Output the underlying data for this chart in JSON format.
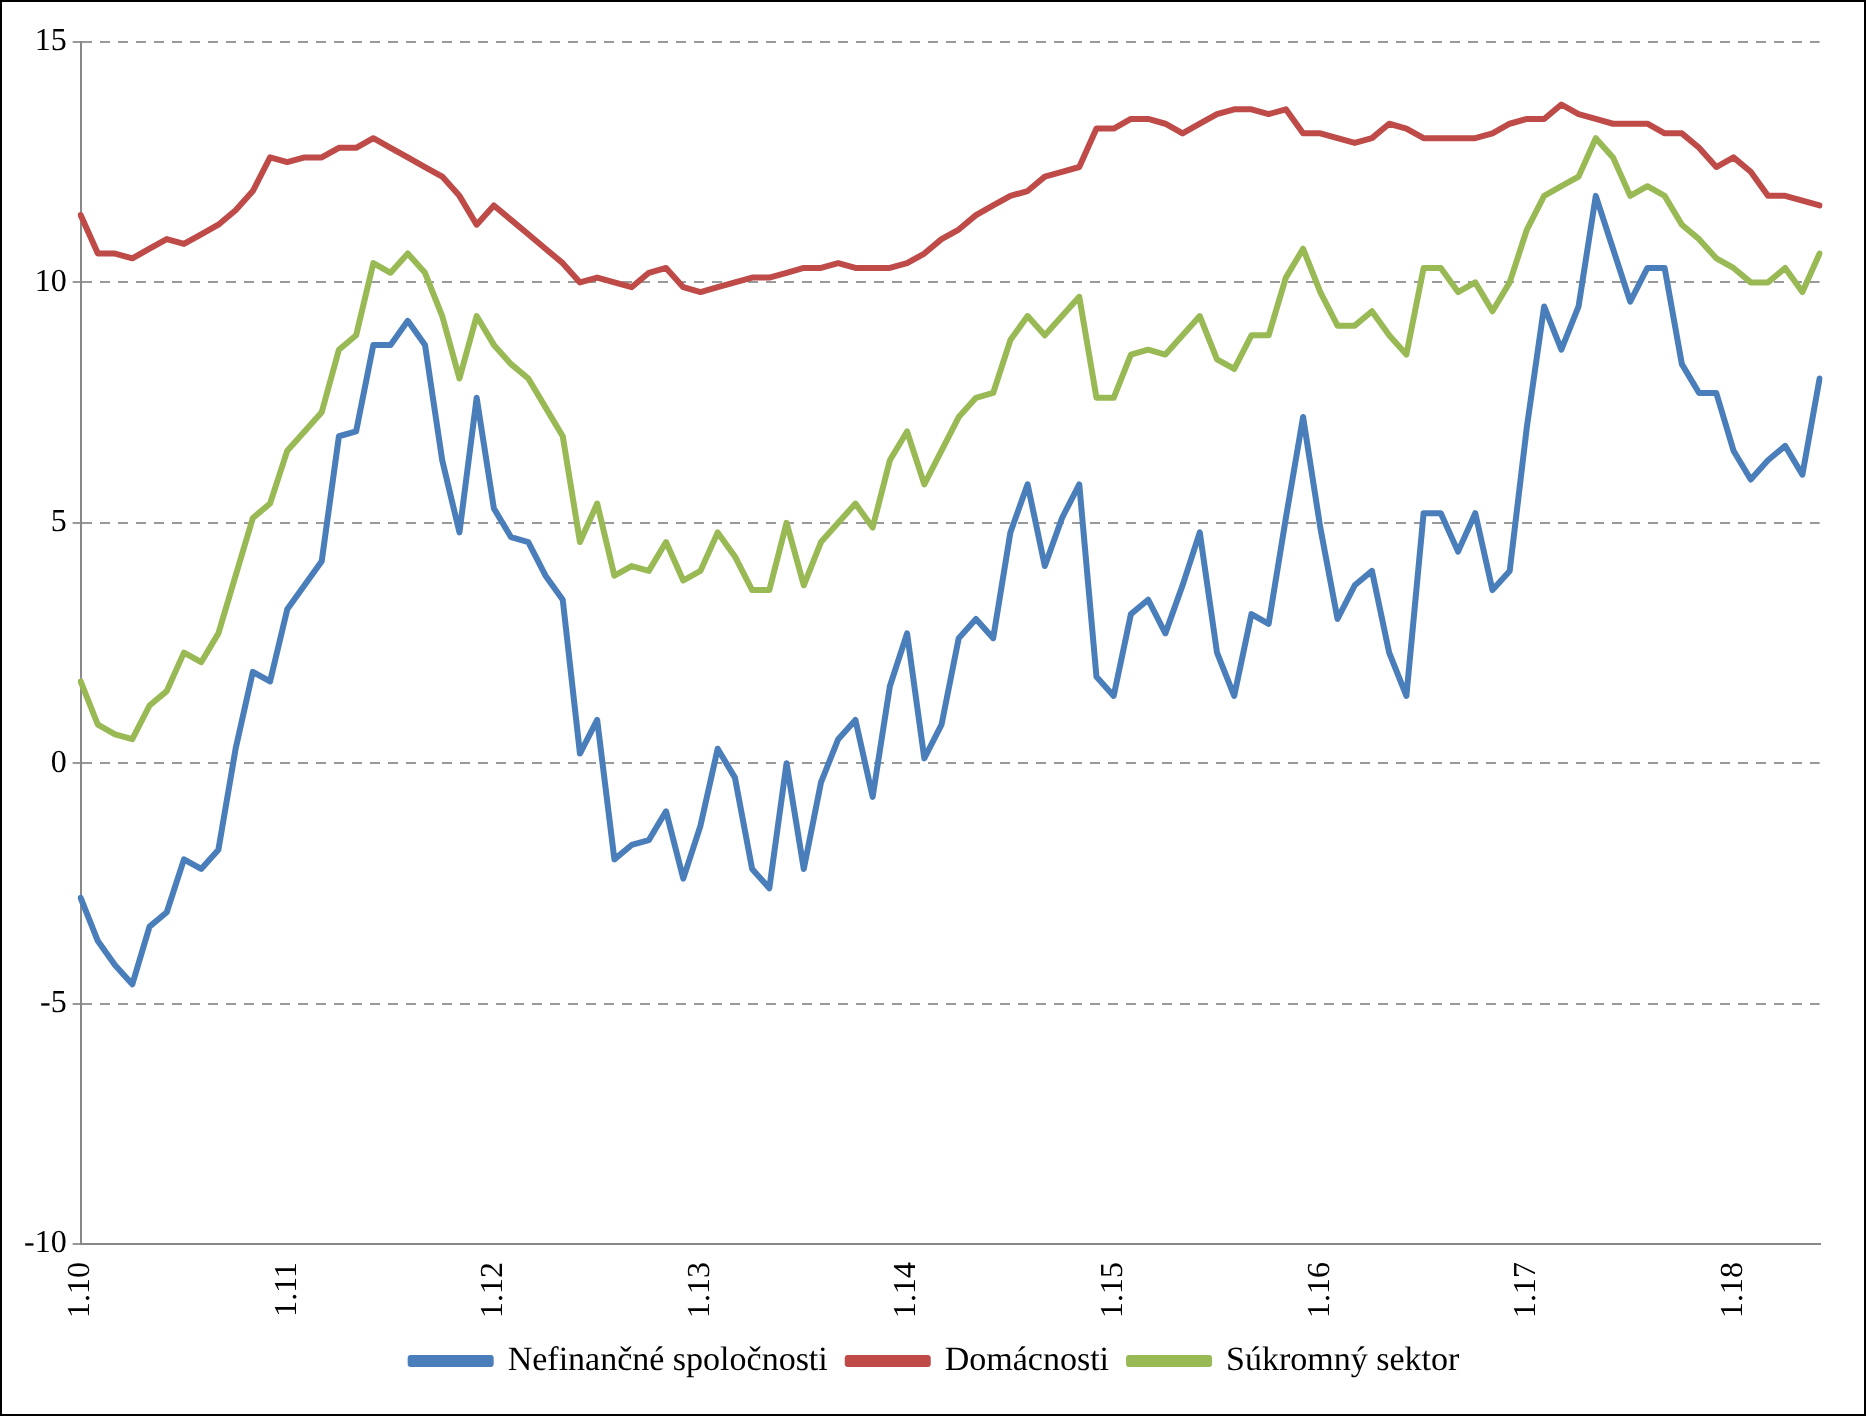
{
  "chart_data": {
    "type": "line",
    "categories": [
      "1.10",
      null,
      null,
      null,
      null,
      null,
      null,
      null,
      null,
      null,
      null,
      null,
      "1.11",
      null,
      null,
      null,
      null,
      null,
      null,
      null,
      null,
      null,
      null,
      null,
      "1.12",
      null,
      null,
      null,
      null,
      null,
      null,
      null,
      null,
      null,
      null,
      null,
      "1.13",
      null,
      null,
      null,
      null,
      null,
      null,
      null,
      null,
      null,
      null,
      null,
      "1.14",
      null,
      null,
      null,
      null,
      null,
      null,
      null,
      null,
      null,
      null,
      null,
      "1.15",
      null,
      null,
      null,
      null,
      null,
      null,
      null,
      null,
      null,
      null,
      null,
      "1.16",
      null,
      null,
      null,
      null,
      null,
      null,
      null,
      null,
      null,
      null,
      null,
      "1.17",
      null,
      null,
      null,
      null,
      null,
      null,
      null,
      null,
      null,
      null,
      null,
      "1.18",
      null,
      null,
      null,
      null,
      null
    ],
    "series": [
      {
        "name": "Nefinančné spoločnosti",
        "color": "#4a7ebb",
        "values": [
          -2.8,
          -3.7,
          -4.2,
          -4.6,
          -3.4,
          -3.1,
          -2.0,
          -2.2,
          -1.8,
          0.3,
          1.9,
          1.7,
          3.2,
          3.7,
          4.2,
          6.8,
          6.9,
          8.7,
          8.7,
          9.2,
          8.7,
          6.3,
          4.8,
          7.6,
          5.3,
          4.7,
          4.6,
          3.9,
          3.4,
          0.2,
          0.9,
          -2.0,
          -1.7,
          -1.6,
          -1.0,
          -2.4,
          -1.3,
          0.3,
          -0.3,
          -2.2,
          -2.6,
          0.0,
          -2.2,
          -0.4,
          0.5,
          0.9,
          -0.7,
          1.6,
          2.7,
          0.1,
          0.8,
          2.6,
          3.0,
          2.6,
          4.8,
          5.8,
          4.1,
          5.1,
          5.8,
          1.8,
          1.4,
          3.1,
          3.4,
          2.7,
          3.7,
          4.8,
          2.3,
          1.4,
          3.1,
          2.9,
          5.1,
          7.2,
          4.9,
          3.0,
          3.7,
          4.0,
          2.3,
          1.4,
          5.2,
          5.2,
          4.4,
          5.2,
          3.6,
          4.0,
          7.0,
          9.5,
          8.6,
          9.5,
          11.8,
          10.7,
          9.6,
          10.3,
          10.3,
          8.3,
          7.7,
          7.7,
          6.5,
          5.9,
          6.3,
          6.6,
          6.0,
          8.0
        ]
      },
      {
        "name": "Domácnosti",
        "color": "#be4b48",
        "values": [
          11.4,
          10.6,
          10.6,
          10.5,
          10.7,
          10.9,
          10.8,
          11.0,
          11.2,
          11.5,
          11.9,
          12.6,
          12.5,
          12.6,
          12.6,
          12.8,
          12.8,
          13.0,
          12.8,
          12.6,
          12.4,
          12.2,
          11.8,
          11.2,
          11.6,
          11.3,
          11.0,
          10.7,
          10.4,
          10.0,
          10.1,
          10.0,
          9.9,
          10.2,
          10.3,
          9.9,
          9.8,
          9.9,
          10.0,
          10.1,
          10.1,
          10.2,
          10.3,
          10.3,
          10.4,
          10.3,
          10.3,
          10.3,
          10.4,
          10.6,
          10.9,
          11.1,
          11.4,
          11.6,
          11.8,
          11.9,
          12.2,
          12.3,
          12.4,
          13.2,
          13.2,
          13.4,
          13.4,
          13.3,
          13.1,
          13.3,
          13.5,
          13.6,
          13.6,
          13.5,
          13.6,
          13.1,
          13.1,
          13.0,
          12.9,
          13.0,
          13.3,
          13.2,
          13.0,
          13.0,
          13.0,
          13.0,
          13.1,
          13.3,
          13.4,
          13.4,
          13.7,
          13.5,
          13.4,
          13.3,
          13.3,
          13.3,
          13.1,
          13.1,
          12.8,
          12.4,
          12.6,
          12.3,
          11.8,
          11.8,
          11.7,
          11.6
        ]
      },
      {
        "name": "Súkromný sektor",
        "color": "#98b954",
        "values": [
          1.7,
          0.8,
          0.6,
          0.5,
          1.2,
          1.5,
          2.3,
          2.1,
          2.7,
          3.9,
          5.1,
          5.4,
          6.5,
          6.9,
          7.3,
          8.6,
          8.9,
          10.4,
          10.2,
          10.6,
          10.2,
          9.3,
          8.0,
          9.3,
          8.7,
          8.3,
          8.0,
          7.4,
          6.8,
          4.6,
          5.4,
          3.9,
          4.1,
          4.0,
          4.6,
          3.8,
          4.0,
          4.8,
          4.3,
          3.6,
          3.6,
          5.0,
          3.7,
          4.6,
          5.0,
          5.4,
          4.9,
          6.3,
          6.9,
          5.8,
          6.5,
          7.2,
          7.6,
          7.7,
          8.8,
          9.3,
          8.9,
          9.3,
          9.7,
          7.6,
          7.6,
          8.5,
          8.6,
          8.5,
          8.9,
          9.3,
          8.4,
          8.2,
          8.9,
          8.9,
          10.1,
          10.7,
          9.8,
          9.1,
          9.1,
          9.4,
          8.9,
          8.5,
          10.3,
          10.3,
          9.8,
          10.0,
          9.4,
          10.0,
          11.1,
          11.8,
          12.0,
          12.2,
          13.0,
          12.6,
          11.8,
          12.0,
          11.8,
          11.2,
          10.9,
          10.5,
          10.3,
          10.0,
          10.0,
          10.3,
          9.8,
          10.6
        ]
      }
    ],
    "ylim": [
      -10,
      15
    ],
    "yticks": [
      -10,
      -5,
      0,
      5,
      10,
      15
    ],
    "grid": "y",
    "legend": "bottom",
    "marker": "none",
    "line_style": "solid"
  }
}
